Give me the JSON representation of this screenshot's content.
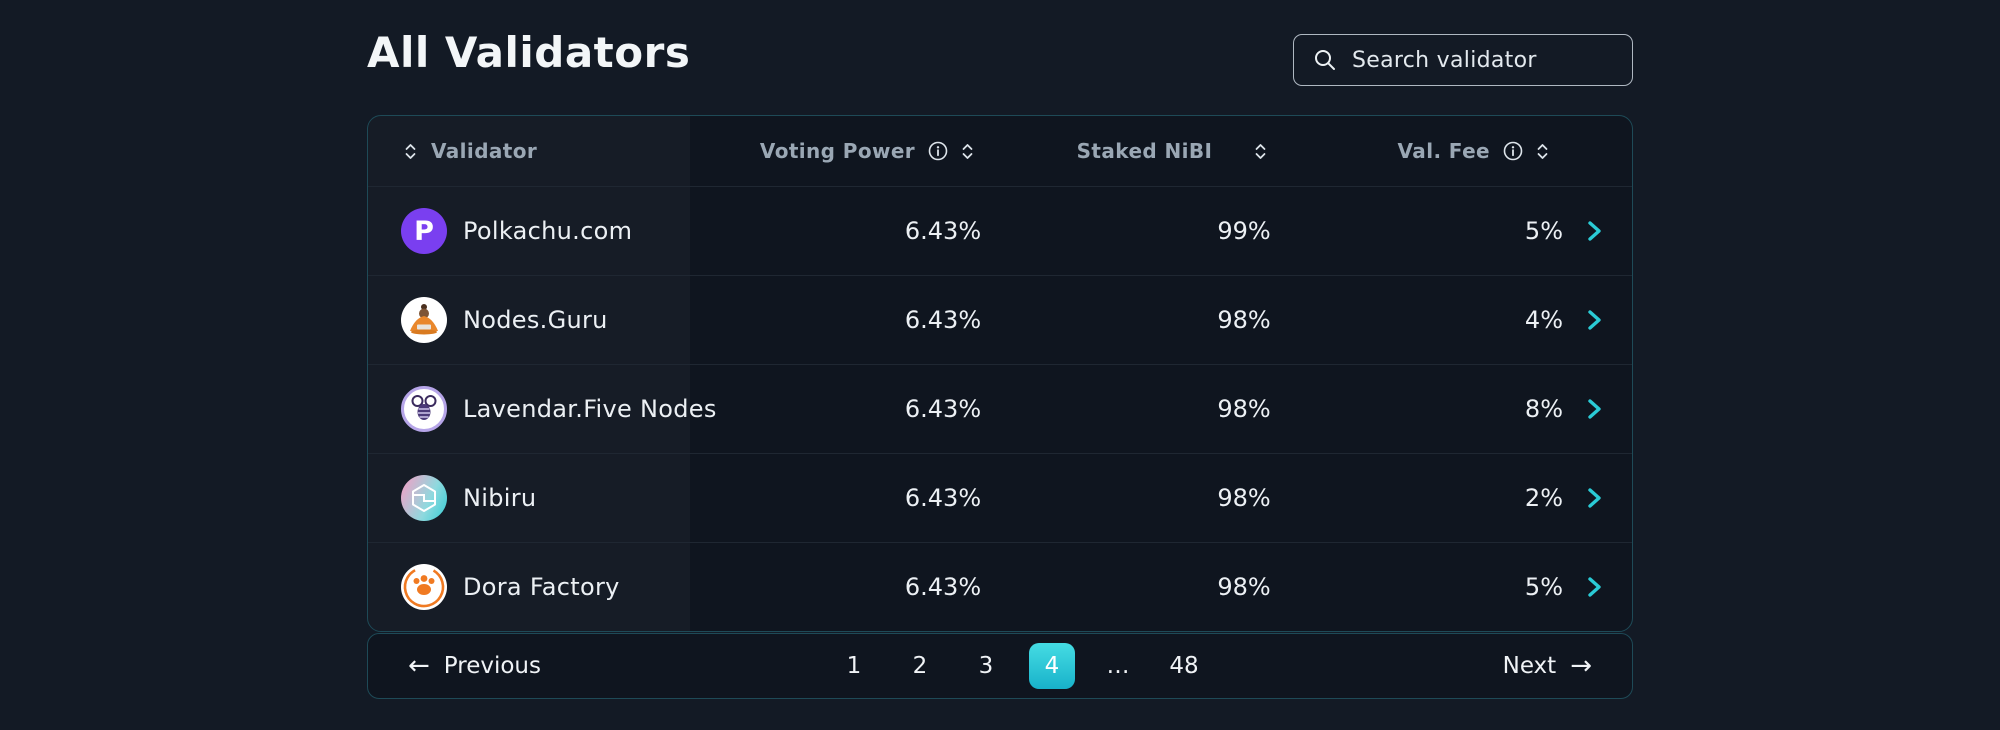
{
  "page": {
    "title": "All Validators"
  },
  "search": {
    "placeholder": "Search validator"
  },
  "table": {
    "headers": {
      "validator": "Validator",
      "voting_power": "Voting Power",
      "staked": "Staked NiBI",
      "fee": "Val. Fee"
    },
    "rows": [
      {
        "name": "Polkachu.com",
        "voting_power": "6.43%",
        "staked": "99%",
        "fee": "5%",
        "avatar": "polkachu"
      },
      {
        "name": "Nodes.Guru",
        "voting_power": "6.43%",
        "staked": "98%",
        "fee": "4%",
        "avatar": "guru"
      },
      {
        "name": "Lavendar.Five Nodes",
        "voting_power": "6.43%",
        "staked": "98%",
        "fee": "8%",
        "avatar": "bee"
      },
      {
        "name": "Nibiru",
        "voting_power": "6.43%",
        "staked": "98%",
        "fee": "2%",
        "avatar": "nibiru"
      },
      {
        "name": "Dora Factory",
        "voting_power": "6.43%",
        "staked": "98%",
        "fee": "5%",
        "avatar": "dora"
      }
    ]
  },
  "pagination": {
    "previous_label": "Previous",
    "next_label": "Next",
    "previous_arrow": "←",
    "next_arrow": "→",
    "pages": [
      "1",
      "2",
      "3",
      "4",
      "…",
      "48"
    ],
    "active_page": "4"
  },
  "colors": {
    "background": "#131a25",
    "panel": "#0f151f",
    "panel_border": "#1e4a57",
    "accent_teal": "#2acbd6",
    "active_page_gradient_top": "#45dce3",
    "active_page_gradient_bottom": "#18b2ca",
    "header_text": "#9aa7b4",
    "body_text": "#ecf0f4"
  }
}
